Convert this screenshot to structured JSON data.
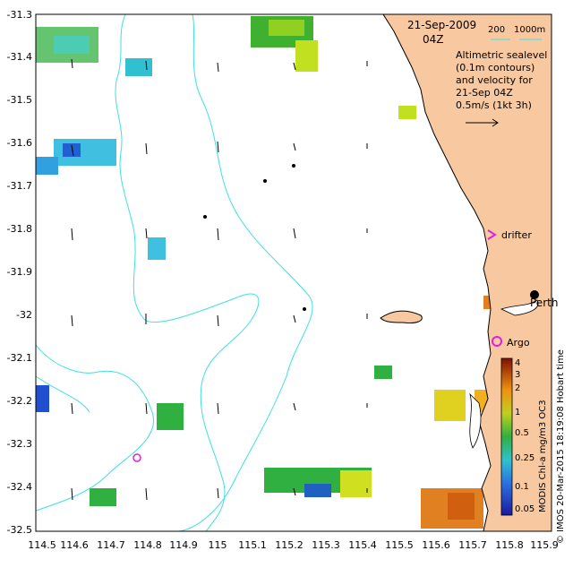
{
  "map": {
    "date": "21-Sep-2009",
    "time": "04Z",
    "bathy_legend_a": "200",
    "bathy_legend_b": "1000m",
    "description_lines": [
      "Altimetric sealevel",
      "(0.1m contours)",
      "and velocity for",
      "21-Sep 04Z",
      "0.5m/s (1kt 3h)"
    ],
    "x_ticks": [
      "114.5",
      "114.6",
      "114.7",
      "114.8",
      "114.9",
      "115",
      "115.1",
      "115.2",
      "115.3",
      "115.4",
      "115.5",
      "115.6",
      "115.7",
      "115.8",
      "115.9"
    ],
    "y_ticks": [
      "-31.3",
      "-31.4",
      "-31.5",
      "-31.6",
      "-31.7",
      "-31.8",
      "-31.9",
      "-32",
      "-32.1",
      "-32.2",
      "-32.3",
      "-32.4",
      "-32.5"
    ],
    "labels": {
      "drifter": "drifter",
      "perth": "Perth",
      "argo": "Argo"
    },
    "colorbar": {
      "ticks": [
        "4",
        "3",
        "2",
        "1",
        "0.5",
        "0.25",
        "0.1",
        "0.05"
      ],
      "side_text": "MODIS Chl-a mg/m3 OC3",
      "credit": "© IMOS 20-Mar-2015 18:19:08 Hobart time"
    },
    "colors": {
      "land": "#f8c8a0",
      "bathy": "#40e0e0",
      "marker": "#e020e0"
    }
  }
}
